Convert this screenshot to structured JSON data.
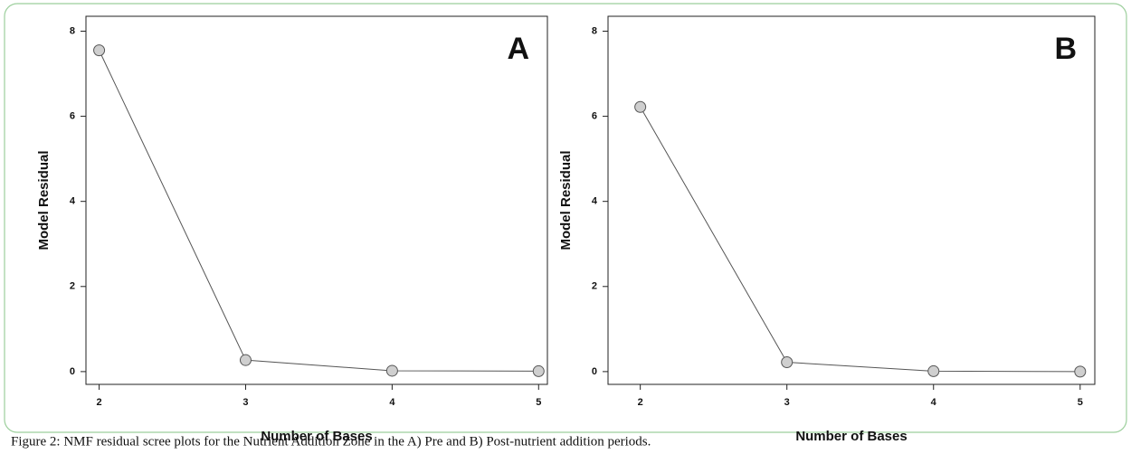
{
  "caption": "Figure 2: NMF residual scree plots for the Nutrient Addition Zone in the A) Pre and B) Post-nutrient addition periods.",
  "chart_data": [
    {
      "type": "line",
      "annotation": "A",
      "x_label": "Number of Bases",
      "y_label": "Model Residual",
      "x": [
        2,
        3,
        4,
        5
      ],
      "values": [
        7.55,
        0.27,
        0.02,
        0.01
      ],
      "color": "#555555",
      "xlim": [
        1.91,
        5.06
      ],
      "xticks": [
        2,
        3,
        4,
        5
      ],
      "ylim": [
        -0.3,
        8.35
      ],
      "yticks": [
        0,
        2,
        4,
        6,
        8
      ]
    },
    {
      "type": "line",
      "annotation": "B",
      "x_label": "Number of Bases",
      "y_label": "Model Residual",
      "x": [
        2,
        3,
        4,
        5
      ],
      "values": [
        6.22,
        0.22,
        0.01,
        0.0
      ],
      "color": "#555555",
      "xlim": [
        1.78,
        5.1
      ],
      "xticks": [
        2,
        3,
        4,
        5
      ],
      "ylim": [
        -0.3,
        8.35
      ],
      "yticks": [
        0,
        2,
        4,
        6,
        8
      ]
    }
  ]
}
